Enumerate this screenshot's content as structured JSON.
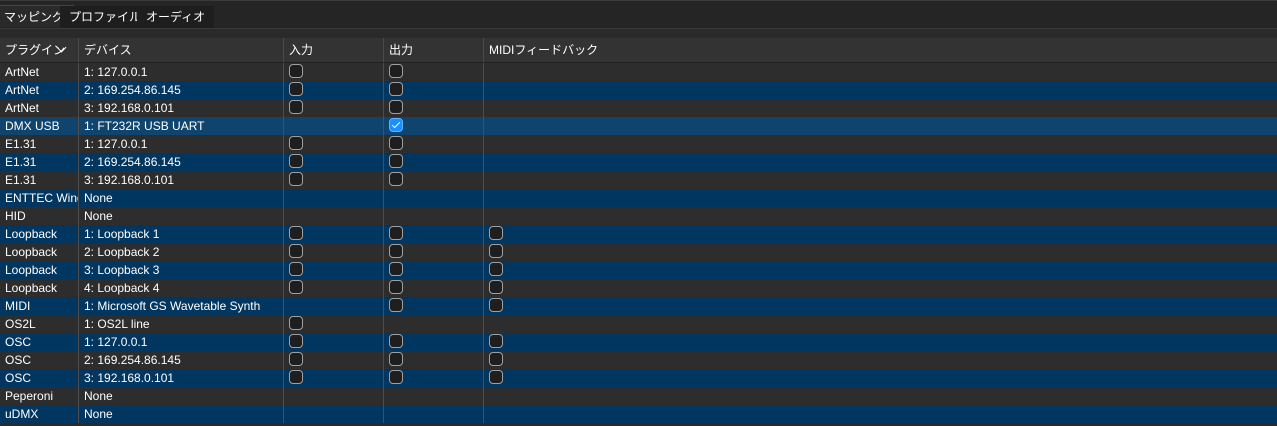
{
  "tabs": [
    {
      "label": "マッピング",
      "active": true
    },
    {
      "label": "プロファイル",
      "active": false
    },
    {
      "label": "オーディオ",
      "active": false
    }
  ],
  "columns": {
    "plugin": "プラグイン",
    "device": "デバイス",
    "input": "入力",
    "output": "出力",
    "feedback": "MIDIフィードバック"
  },
  "sort_icon": "chevron-down-icon",
  "colors": {
    "row_dark": "#2d2d2d",
    "row_blue": "#003660",
    "row_selected": "#0f446e",
    "checkbox_checked": "#1a8fff"
  },
  "rows": [
    {
      "plugin": "ArtNet",
      "device": "1: 127.0.0.1",
      "input": false,
      "output": false,
      "feedback": null
    },
    {
      "plugin": "ArtNet",
      "device": "2: 169.254.86.145",
      "input": false,
      "output": false,
      "feedback": null
    },
    {
      "plugin": "ArtNet",
      "device": "3: 192.168.0.101",
      "input": false,
      "output": false,
      "feedback": null
    },
    {
      "plugin": "DMX USB",
      "device": "1: FT232R USB UART",
      "input": null,
      "output": true,
      "feedback": null,
      "selected": true
    },
    {
      "plugin": "E1.31",
      "device": "1: 127.0.0.1",
      "input": false,
      "output": false,
      "feedback": null
    },
    {
      "plugin": "E1.31",
      "device": "2: 169.254.86.145",
      "input": false,
      "output": false,
      "feedback": null
    },
    {
      "plugin": "E1.31",
      "device": "3: 192.168.0.101",
      "input": false,
      "output": false,
      "feedback": null
    },
    {
      "plugin": "ENTTEC Wing",
      "device": "None",
      "input": null,
      "output": null,
      "feedback": null
    },
    {
      "plugin": "HID",
      "device": "None",
      "input": null,
      "output": null,
      "feedback": null
    },
    {
      "plugin": "Loopback",
      "device": "1: Loopback 1",
      "input": false,
      "output": false,
      "feedback": false
    },
    {
      "plugin": "Loopback",
      "device": "2: Loopback 2",
      "input": false,
      "output": false,
      "feedback": false
    },
    {
      "plugin": "Loopback",
      "device": "3: Loopback 3",
      "input": false,
      "output": false,
      "feedback": false
    },
    {
      "plugin": "Loopback",
      "device": "4: Loopback 4",
      "input": false,
      "output": false,
      "feedback": false
    },
    {
      "plugin": "MIDI",
      "device": "1: Microsoft GS Wavetable Synth",
      "input": null,
      "output": false,
      "feedback": false
    },
    {
      "plugin": "OS2L",
      "device": "1: OS2L line",
      "input": false,
      "output": null,
      "feedback": null
    },
    {
      "plugin": "OSC",
      "device": "1: 127.0.0.1",
      "input": false,
      "output": false,
      "feedback": false
    },
    {
      "plugin": "OSC",
      "device": "2: 169.254.86.145",
      "input": false,
      "output": false,
      "feedback": false
    },
    {
      "plugin": "OSC",
      "device": "3: 192.168.0.101",
      "input": false,
      "output": false,
      "feedback": false
    },
    {
      "plugin": "Peperoni",
      "device": "None",
      "input": null,
      "output": null,
      "feedback": null
    },
    {
      "plugin": "uDMX",
      "device": "None",
      "input": null,
      "output": null,
      "feedback": null
    }
  ]
}
